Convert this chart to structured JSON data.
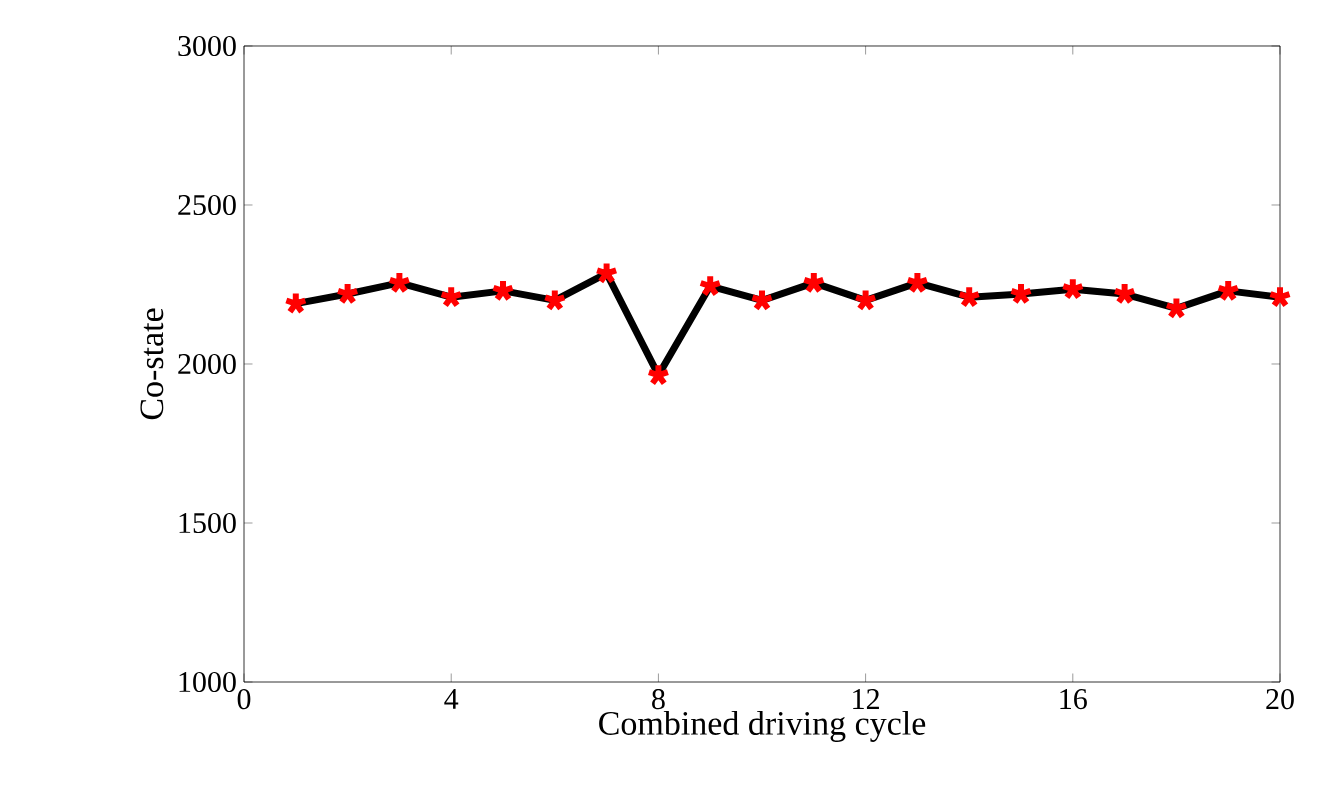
{
  "chart_data": {
    "type": "line",
    "xlabel": "Combined driving cycle",
    "ylabel": "Co-state",
    "x": [
      1,
      2,
      3,
      4,
      5,
      6,
      7,
      8,
      9,
      10,
      11,
      12,
      13,
      14,
      15,
      16,
      17,
      18,
      19,
      20
    ],
    "series": [
      {
        "color": "#000000",
        "values": [
          2190,
          2220,
          2255,
          2210,
          2230,
          2200,
          2285,
          1965,
          2245,
          2200,
          2255,
          2200,
          2255,
          2210,
          2220,
          2235,
          2220,
          2175,
          2230,
          2210
        ]
      }
    ],
    "marker": "cross",
    "line_style": "solid",
    "xlim": [
      0,
      20
    ],
    "xticks": [
      0,
      4,
      8,
      12,
      16,
      20
    ],
    "ylim": [
      1000,
      3000
    ],
    "yticks": [
      1000,
      1500,
      2000,
      2500,
      3000
    ]
  }
}
